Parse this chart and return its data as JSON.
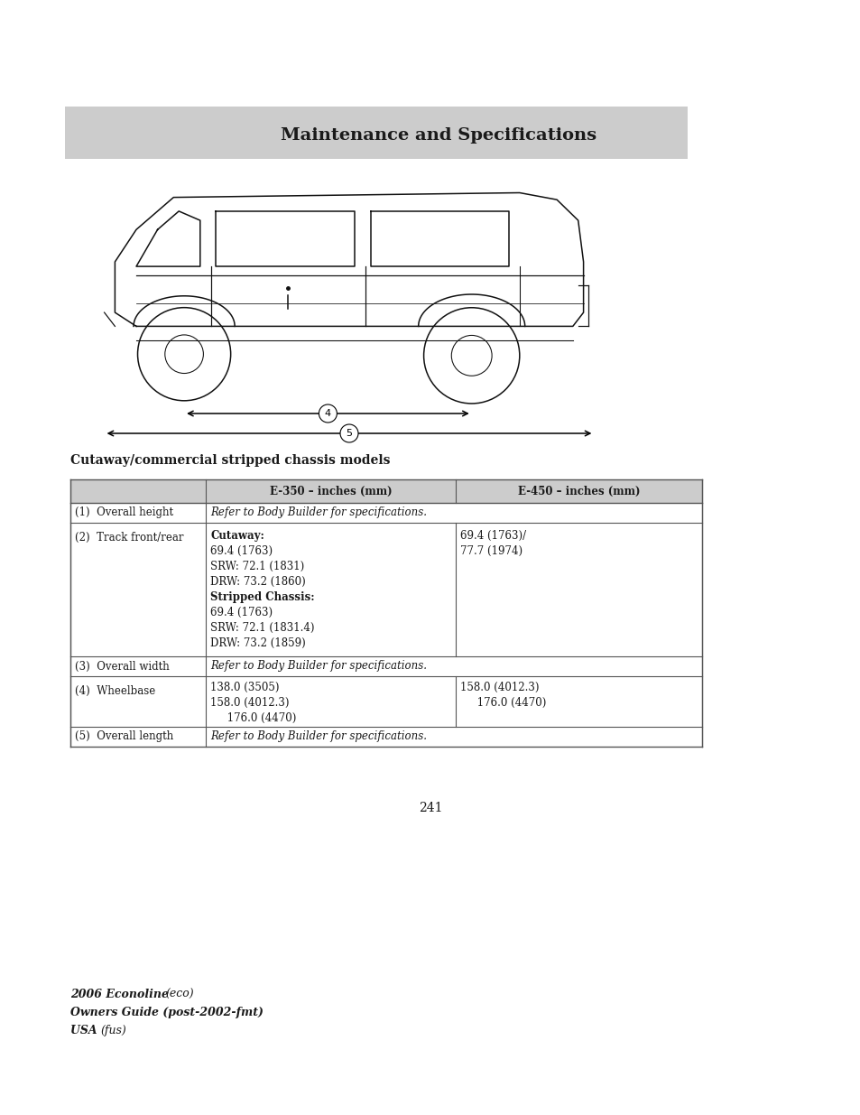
{
  "page_title": "Maintenance and Specifications",
  "section_title": "Cutaway/commercial stripped chassis models",
  "header_bg": "#cccccc",
  "table_header_bg": "#cccccc",
  "page_number": "241",
  "footer_line1": "2006 Econoline ",
  "footer_line1b": "(eco)",
  "footer_line2": "Owners Guide (post-2002-fmt)",
  "footer_line3": "USA ",
  "footer_line3b": "(fus)",
  "table_columns": [
    "",
    "E-350 – inches (mm)",
    "E-450 – inches (mm)"
  ],
  "background": "#ffffff",
  "text_color": "#1a1a1a",
  "border_color": "#555555"
}
